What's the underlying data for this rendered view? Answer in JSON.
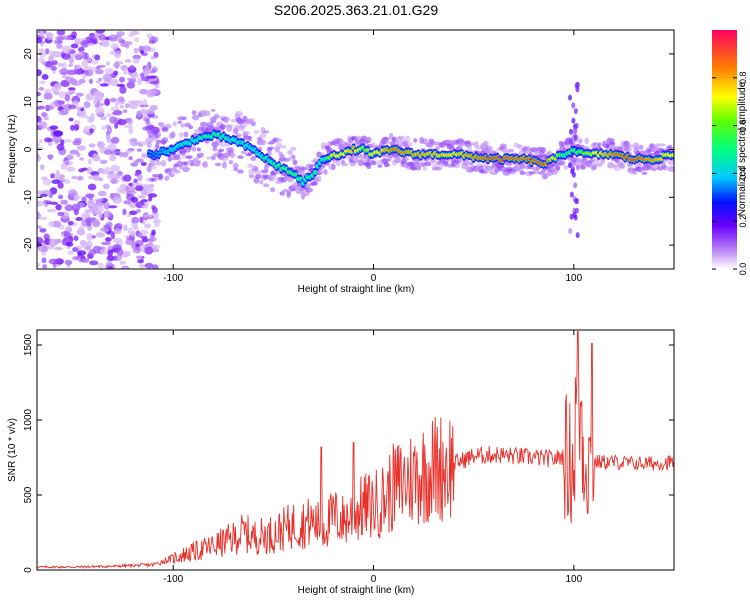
{
  "title": "S206.2025.363.21.01.G29",
  "chart_data": [
    {
      "type": "heatmap",
      "xlabel": "Height of straight line (km)",
      "ylabel": "Frequency (Hz)",
      "xlim": [
        -168,
        150
      ],
      "ylim": [
        -25,
        25
      ],
      "xticks": [
        -100,
        0,
        100
      ],
      "yticks": [
        -20,
        -10,
        0,
        10,
        20
      ],
      "colorbar": {
        "label": "Normalized spectral amplitude",
        "range": [
          0,
          1
        ],
        "ticks": [
          "0.0",
          "0.2",
          "0.4",
          "0.6",
          "0.8"
        ]
      },
      "ridge": {
        "x": [
          -110,
          -100,
          -90,
          -80,
          -70,
          -60,
          -50,
          -40,
          -35,
          -30,
          -25,
          -20,
          -15,
          -10,
          -5,
          0,
          10,
          20,
          40,
          60,
          75,
          85,
          90,
          95,
          100,
          105,
          110,
          120,
          130,
          140,
          150
        ],
        "freq": [
          -1,
          0,
          2,
          3,
          2,
          0,
          -3,
          -5,
          -7,
          -5,
          -2,
          -1,
          -1,
          0,
          0,
          -1,
          0,
          -1,
          -1,
          -2,
          -2,
          -3,
          -2,
          -1,
          0,
          -1,
          -1,
          -1,
          -2,
          -2,
          -1
        ],
        "amplitude": [
          0.3,
          0.4,
          0.45,
          0.5,
          0.45,
          0.4,
          0.5,
          0.55,
          0.45,
          0.5,
          0.45,
          0.75,
          0.7,
          0.8,
          0.6,
          0.7,
          0.85,
          0.8,
          0.75,
          0.9,
          0.85,
          0.9,
          0.7,
          0.5,
          0.55,
          0.6,
          0.7,
          0.85,
          0.9,
          0.8,
          0.7
        ]
      }
    },
    {
      "type": "line",
      "xlabel": "Height of straight line (km)",
      "ylabel": "SNR (10 * v/v)",
      "xlim": [
        -168,
        150
      ],
      "ylim": [
        0,
        1600
      ],
      "xticks": [
        -100,
        0,
        100
      ],
      "yticks": [
        0,
        500,
        1000,
        1500
      ],
      "color": "#e8302a",
      "series": [
        {
          "name": "SNR",
          "x": [
            -168,
            -150,
            -130,
            -110,
            -100,
            -90,
            -80,
            -70,
            -65,
            -60,
            -50,
            -40,
            -30,
            -25,
            -20,
            -15,
            -10,
            -5,
            0,
            5,
            10,
            20,
            30,
            40,
            50,
            60,
            70,
            80,
            90,
            95,
            100,
            102,
            105,
            108,
            110,
            120,
            130,
            140,
            150
          ],
          "y": [
            20,
            20,
            25,
            35,
            80,
            120,
            160,
            210,
            250,
            220,
            240,
            300,
            320,
            280,
            360,
            330,
            370,
            420,
            430,
            470,
            550,
            620,
            680,
            710,
            760,
            770,
            760,
            750,
            740,
            760,
            700,
            1300,
            800,
            700,
            720,
            720,
            710,
            710,
            720
          ]
        }
      ],
      "peaks": [
        {
          "x": -26,
          "y": 820
        },
        {
          "x": -10,
          "y": 850
        },
        {
          "x": 102,
          "y": 1590
        },
        {
          "x": 109,
          "y": 1510
        }
      ]
    }
  ]
}
